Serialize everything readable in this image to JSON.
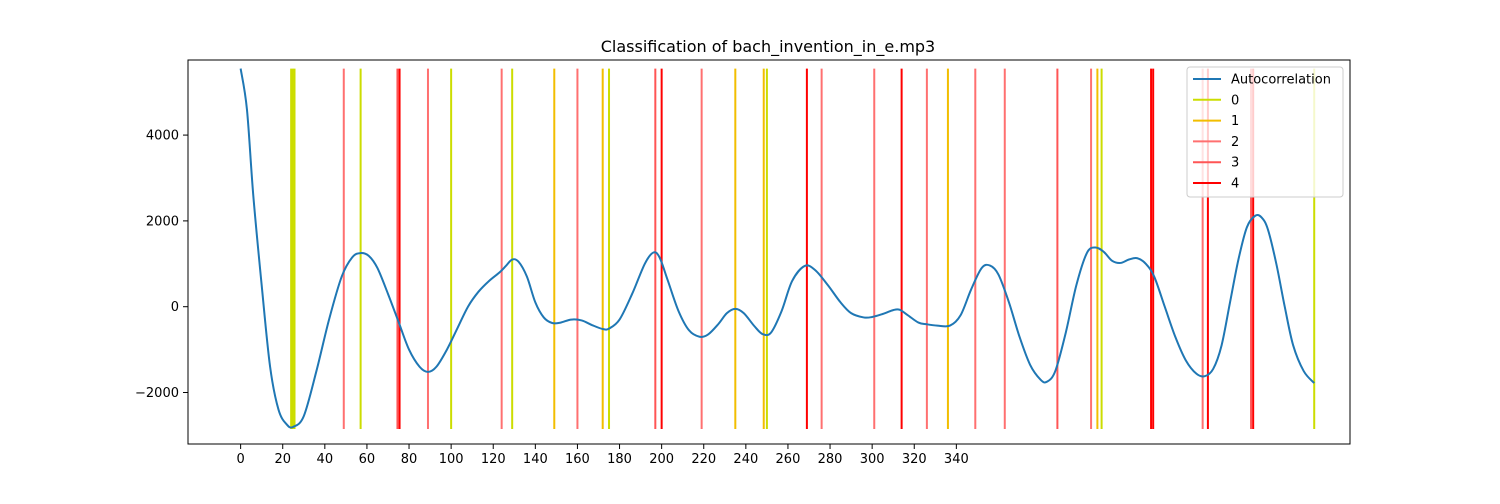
{
  "chart_data": {
    "type": "line",
    "title": "Classification of bach_invention_in_e.mp3",
    "xlabel": "",
    "ylabel": "",
    "xlim": [
      -25,
      527
    ],
    "ylim": [
      -3200,
      5750
    ],
    "xticks": [
      0,
      20,
      40,
      60,
      80,
      100,
      120,
      140,
      160,
      180,
      200,
      220,
      240,
      260,
      280,
      300,
      320,
      340
    ],
    "yticks": [
      -2000,
      0,
      2000,
      4000
    ],
    "grid": false,
    "legend_position": "top-right",
    "colors": {
      "autocorrelation": "#1f77b4",
      "class_0": "#ccdd00",
      "class_1": "#f2be00",
      "class_2": "#ff7070",
      "class_3": "#ff5555",
      "class_4": "#ff0000"
    },
    "autocorrelation": {
      "name": "Autocorrelation",
      "points": [
        [
          0,
          5550
        ],
        [
          3,
          4600
        ],
        [
          6,
          2600
        ],
        [
          10,
          500
        ],
        [
          14,
          -1400
        ],
        [
          18,
          -2400
        ],
        [
          22,
          -2750
        ],
        [
          25,
          -2800
        ],
        [
          30,
          -2550
        ],
        [
          36,
          -1500
        ],
        [
          42,
          -300
        ],
        [
          48,
          700
        ],
        [
          53,
          1150
        ],
        [
          57,
          1250
        ],
        [
          61,
          1180
        ],
        [
          65,
          900
        ],
        [
          70,
          300
        ],
        [
          75,
          -350
        ],
        [
          80,
          -1000
        ],
        [
          85,
          -1400
        ],
        [
          89,
          -1520
        ],
        [
          93,
          -1400
        ],
        [
          98,
          -1000
        ],
        [
          103,
          -500
        ],
        [
          108,
          0
        ],
        [
          113,
          350
        ],
        [
          118,
          600
        ],
        [
          123,
          800
        ],
        [
          126,
          950
        ],
        [
          129,
          1100
        ],
        [
          132,
          1050
        ],
        [
          136,
          700
        ],
        [
          140,
          100
        ],
        [
          144,
          -250
        ],
        [
          148,
          -380
        ],
        [
          152,
          -370
        ],
        [
          157,
          -300
        ],
        [
          162,
          -320
        ],
        [
          167,
          -430
        ],
        [
          172,
          -520
        ],
        [
          175,
          -510
        ],
        [
          180,
          -300
        ],
        [
          186,
          300
        ],
        [
          192,
          1000
        ],
        [
          196,
          1260
        ],
        [
          199,
          1150
        ],
        [
          203,
          600
        ],
        [
          208,
          -100
        ],
        [
          213,
          -550
        ],
        [
          218,
          -700
        ],
        [
          222,
          -650
        ],
        [
          227,
          -400
        ],
        [
          231,
          -150
        ],
        [
          235,
          -50
        ],
        [
          239,
          -150
        ],
        [
          244,
          -450
        ],
        [
          248,
          -640
        ],
        [
          252,
          -600
        ],
        [
          257,
          -100
        ],
        [
          262,
          600
        ],
        [
          268,
          950
        ],
        [
          273,
          850
        ],
        [
          279,
          500
        ],
        [
          285,
          100
        ],
        [
          290,
          -150
        ],
        [
          296,
          -250
        ],
        [
          300,
          -240
        ],
        [
          305,
          -170
        ],
        [
          310,
          -80
        ],
        [
          313,
          -70
        ],
        [
          317,
          -200
        ],
        [
          322,
          -370
        ],
        [
          326,
          -410
        ],
        [
          331,
          -440
        ],
        [
          337,
          -440
        ],
        [
          342,
          -200
        ],
        [
          347,
          400
        ],
        [
          352,
          900
        ],
        [
          356,
          960
        ],
        [
          360,
          750
        ],
        [
          365,
          100
        ],
        [
          370,
          -700
        ],
        [
          375,
          -1350
        ],
        [
          380,
          -1700
        ],
        [
          383,
          -1750
        ],
        [
          387,
          -1500
        ],
        [
          392,
          -600
        ],
        [
          397,
          500
        ],
        [
          402,
          1250
        ],
        [
          406,
          1380
        ],
        [
          410,
          1280
        ],
        [
          414,
          1070
        ],
        [
          418,
          1020
        ],
        [
          422,
          1100
        ],
        [
          426,
          1130
        ],
        [
          430,
          1000
        ],
        [
          434,
          700
        ],
        [
          439,
          0
        ],
        [
          444,
          -700
        ],
        [
          449,
          -1250
        ],
        [
          454,
          -1560
        ],
        [
          458,
          -1620
        ],
        [
          462,
          -1450
        ],
        [
          466,
          -900
        ],
        [
          470,
          100
        ],
        [
          474,
          1100
        ],
        [
          478,
          1850
        ],
        [
          482,
          2120
        ],
        [
          485,
          2080
        ],
        [
          488,
          1800
        ],
        [
          492,
          1000
        ],
        [
          496,
          0
        ],
        [
          500,
          -900
        ],
        [
          505,
          -1500
        ],
        [
          510,
          -1780
        ]
      ]
    },
    "classes": [
      {
        "name": "0",
        "color": "#ccdd00",
        "x": [
          24,
          24.8,
          25.6,
          57,
          100,
          129,
          175,
          250,
          409,
          510
        ]
      },
      {
        "name": "1",
        "color": "#f2be00",
        "x": [
          149,
          172,
          235,
          248.5,
          336,
          407
        ]
      },
      {
        "name": "2",
        "color": "#ff7070",
        "x": [
          49,
          89,
          124,
          160,
          219,
          276,
          301,
          326,
          349,
          363,
          404,
          457
        ]
      },
      {
        "name": "3",
        "color": "#ff5555",
        "x": [
          74.5,
          197,
          388,
          480
        ]
      },
      {
        "name": "4",
        "color": "#ff0000",
        "x": [
          75.5,
          200,
          269,
          314,
          432.5,
          433.5,
          459.5,
          481
        ]
      }
    ],
    "vline_range": [
      -2850,
      5550
    ]
  }
}
